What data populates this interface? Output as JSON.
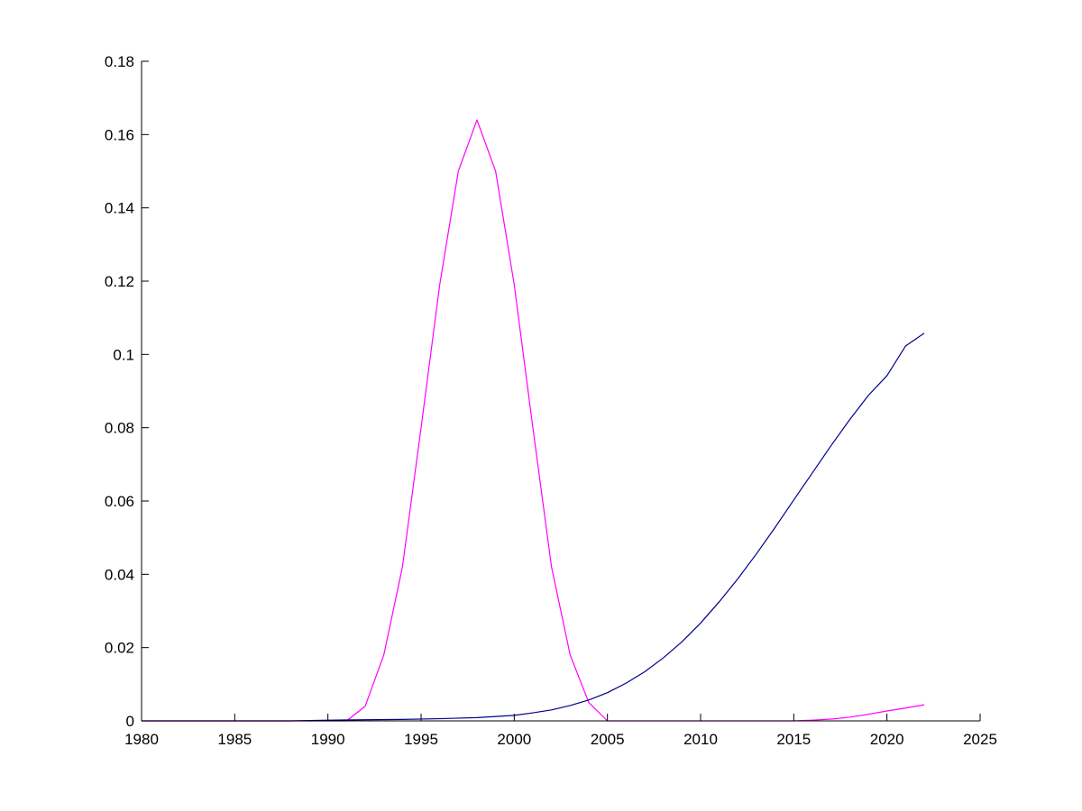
{
  "chart_data": {
    "type": "line",
    "title": "",
    "xlabel": "",
    "ylabel": "",
    "xlim": [
      1980,
      2025
    ],
    "ylim": [
      0,
      0.18
    ],
    "x_ticks": [
      1980,
      1985,
      1990,
      1995,
      2000,
      2005,
      2010,
      2015,
      2020,
      2025
    ],
    "x_tick_labels": [
      "1980",
      "1985",
      "1990",
      "1995",
      "2000",
      "2005",
      "2010",
      "2015",
      "2020",
      "2025"
    ],
    "y_ticks": [
      0,
      0.02,
      0.04,
      0.06,
      0.08,
      0.1,
      0.12,
      0.14,
      0.16,
      0.18
    ],
    "y_tick_labels": [
      "0",
      "0.02",
      "0.04",
      "0.06",
      "0.08",
      "0.1",
      "0.12",
      "0.14",
      "0.16",
      "0.18"
    ],
    "grid": false,
    "legend": "none",
    "series": [
      {
        "color": "#ff00ff",
        "x": [
          1980,
          1985,
          1990,
          1991,
          1992,
          1993,
          1994,
          1995,
          1996,
          1997,
          1998,
          1999,
          2000,
          2001,
          2002,
          2003,
          2004,
          2005,
          2010,
          2015,
          2016,
          2017,
          2018,
          2019,
          2020,
          2021,
          2022
        ],
        "values": [
          0,
          0,
          0,
          0,
          0.004,
          0.018,
          0.042,
          0.08,
          0.119,
          0.15,
          0.164,
          0.15,
          0.119,
          0.08,
          0.042,
          0.018,
          0.005,
          0,
          0,
          0,
          0.0002,
          0.0005,
          0.001,
          0.0018,
          0.0027,
          0.0035,
          0.0044
        ]
      },
      {
        "color": "#00008b",
        "x": [
          1980,
          1985,
          1988,
          1990,
          1992,
          1994,
          1996,
          1998,
          2000,
          2001,
          2002,
          2003,
          2004,
          2005,
          2006,
          2007,
          2008,
          2009,
          2010,
          2011,
          2012,
          2013,
          2014,
          2015,
          2016,
          2017,
          2018,
          2019,
          2020,
          2021,
          2022
        ],
        "values": [
          0,
          0,
          0,
          0.0002,
          0.0003,
          0.0004,
          0.0006,
          0.0009,
          0.0015,
          0.0022,
          0.003,
          0.0042,
          0.0057,
          0.0077,
          0.0103,
          0.0134,
          0.0172,
          0.0216,
          0.0267,
          0.0325,
          0.0388,
          0.0456,
          0.0528,
          0.0603,
          0.0677,
          0.0751,
          0.0822,
          0.0888,
          0.0942,
          0.1023,
          0.1058
        ]
      }
    ]
  }
}
